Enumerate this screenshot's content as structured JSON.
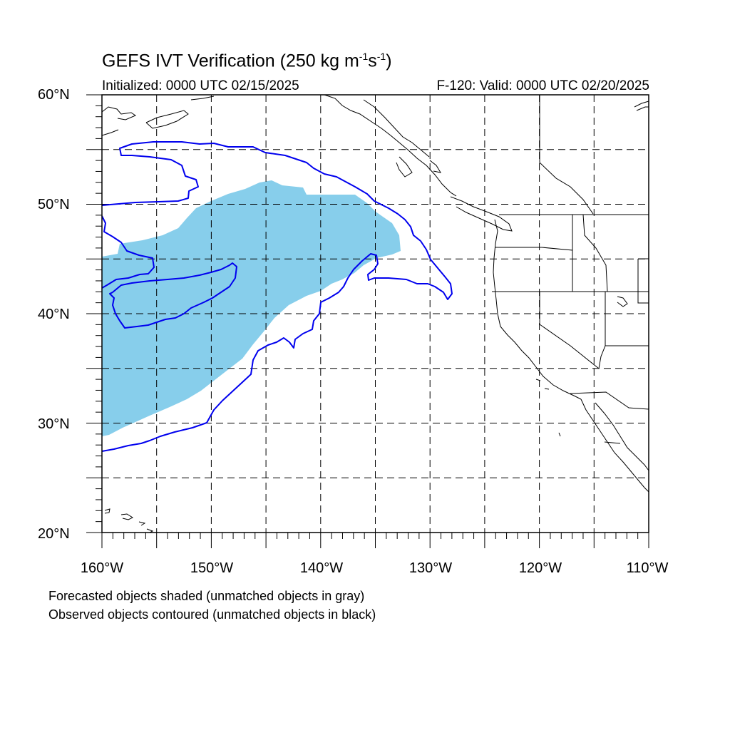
{
  "header": {
    "title_main": "GEFS IVT Verification (250 kg m",
    "title_exp1": "-1",
    "title_mid": "s",
    "title_exp2": "-1",
    "title_end": ")",
    "initialized": "Initialized: 0000 UTC 02/15/2025",
    "valid": "F-120: Valid: 0000 UTC 02/20/2025"
  },
  "map": {
    "lat_labels": [
      "60°N",
      "50°N",
      "40°N",
      "30°N",
      "20°N"
    ],
    "lon_labels": [
      "160°W",
      "150°W",
      "140°W",
      "130°W",
      "120°W",
      "110°W"
    ],
    "extent": {
      "lon_min": -160,
      "lon_max": -110,
      "lat_min": 20,
      "lat_max": 60
    },
    "forecast_fill_color": "#87ceeb",
    "observed_contour_color": "#0000ee",
    "grid_color": "#000000"
  },
  "legend": {
    "line1": "Forecasted objects shaded (unmatched objects in gray)",
    "line2": "Observed objects contoured (unmatched objects in black)"
  }
}
